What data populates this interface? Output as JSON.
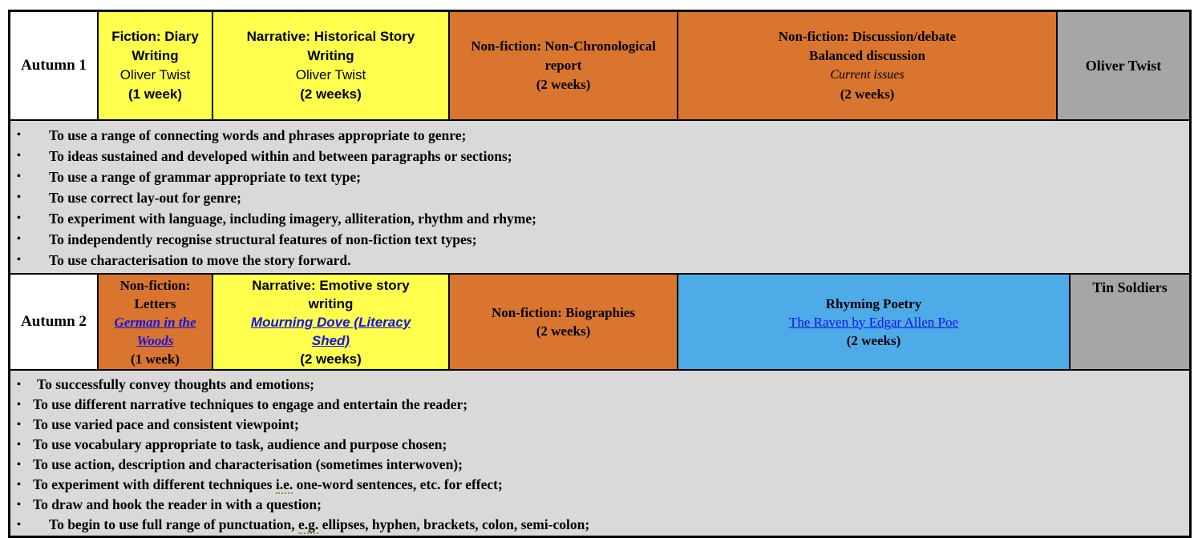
{
  "colors": {
    "yellow_unit": "#ffff4d",
    "orange_unit": "#d9752f",
    "blue_unit": "#4dabe8",
    "gray_book_cell": "#a6a6a6",
    "objectives_background": "#d9d9d9",
    "link_blue": "#1414e0",
    "border": "#000000",
    "spellcheck_squiggle": "#a8862f"
  },
  "glyphs": {
    "bullet": "•"
  },
  "autumn1": {
    "label": "Autumn 1",
    "book_cell": "Oliver Twist",
    "units": [
      {
        "title": "Fiction: Diary Writing",
        "book": "Oliver Twist",
        "duration": "(1 week)"
      },
      {
        "title": "Narrative: Historical Story Writing",
        "book": "Oliver Twist",
        "duration": "(2 weeks)"
      },
      {
        "title": "Non-fiction: Non-Chronological report",
        "duration": "(2 weeks)"
      },
      {
        "title": "Non-fiction: Discussion/debate",
        "subtitle": "Balanced discussion",
        "note": "Current issues",
        "duration": "(2 weeks)"
      }
    ],
    "objectives": [
      {
        "pre": "To use a range of connecting words and phrases appropriate to genre;",
        "mark": "",
        "post": ""
      },
      {
        "pre": "To ideas sustained and developed within and between paragraphs or sections;",
        "mark": "",
        "post": ""
      },
      {
        "pre": "To use a range of grammar appropriate to text type;",
        "mark": "",
        "post": ""
      },
      {
        "pre": "To use correct lay-out for genre;",
        "mark": "",
        "post": ""
      },
      {
        "pre": "To experiment with language, including imagery, alliteration, rhythm and rhyme;",
        "mark": "",
        "post": ""
      },
      {
        "pre": "To independently recognise structural features of non-fiction text types;",
        "mark": "",
        "post": ""
      },
      {
        "pre": "To use characterisation to move the story forward.",
        "mark": "",
        "post": ""
      }
    ]
  },
  "autumn2": {
    "label": "Autumn 2",
    "book_cell": "Tin Soldiers",
    "units": [
      {
        "title": "Non-fiction: Letters",
        "link": "German in the Woods",
        "duration": "(1 week)"
      },
      {
        "title": "Narrative: Emotive story writing",
        "link": "Mourning Dove (Literacy Shed)",
        "duration": "(2 weeks)"
      },
      {
        "title": "Non-fiction: Biographies",
        "duration": "(2 weeks)"
      },
      {
        "title": "Rhyming Poetry",
        "link": "The Raven by Edgar Allen Poe",
        "duration": "(2 weeks)"
      }
    ],
    "objectives": [
      {
        "pre": "To successfully convey thoughts and emotions;",
        "mark": "",
        "post": ""
      },
      {
        "pre": "To use different narrative techniques to engage and entertain the reader;",
        "mark": "",
        "post": ""
      },
      {
        "pre": "To use varied pace and consistent viewpoint;",
        "mark": "",
        "post": ""
      },
      {
        "pre": "To use vocabulary appropriate to task, audience and purpose chosen;",
        "mark": "",
        "post": ""
      },
      {
        "pre": "To use action, description and characterisation (sometimes interwoven);",
        "mark": "",
        "post": ""
      },
      {
        "pre": "To experiment with different techniques ",
        "mark": "i.e.",
        "post": " one-word sentences, etc. for effect;"
      },
      {
        "pre": "To draw and hook the reader in with a question;",
        "mark": "",
        "post": ""
      },
      {
        "pre": "To begin to use full range of punctuation, ",
        "mark": "e.g.",
        "post": " ellipses, hyphen, brackets, colon, semi-colon;"
      }
    ]
  }
}
